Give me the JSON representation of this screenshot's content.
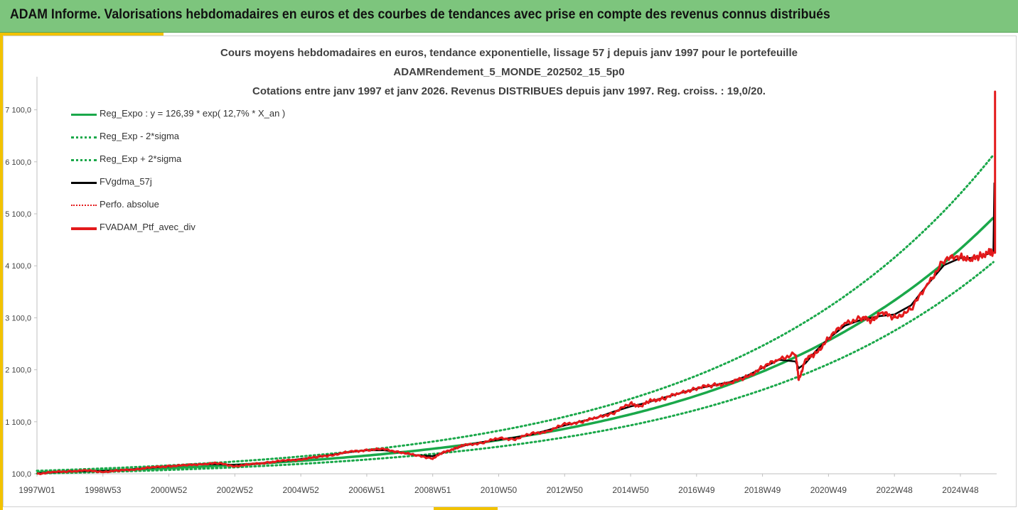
{
  "banner": {
    "title": "ADAM Informe. Valorisations hebdomadaires en euros et des courbes de tendances avec prise en compte des revenus connus distribués"
  },
  "chart_data": {
    "type": "line",
    "title": [
      "Cours moyens hebdomadaires  en euros, tendance exponentielle, lissage 57 j depuis janv 1997 pour le portefeuille",
      "ADAMRendement_5_MONDE_202502_15_5p0",
      "Cotations entre janv 1997 et janv 2026. Revenus DISTRIBUES depuis janv 1997. Reg. croiss. : 19,0/20."
    ],
    "xlabel": "",
    "ylabel": "",
    "xlim": [
      1997.0,
      2026.1
    ],
    "ylim": [
      100,
      7600
    ],
    "y_ticks": [
      100,
      1100,
      2100,
      3100,
      4100,
      5100,
      6100,
      7100
    ],
    "y_tick_labels": [
      "100,0",
      "1 100,0",
      "2 100,0",
      "3 100,0",
      "4 100,0",
      "5 100,0",
      "6 100,0",
      "7 100,0"
    ],
    "x_ticks": [
      1997.0,
      1999.0,
      2001.0,
      2003.0,
      2005.0,
      2007.0,
      2009.0,
      2011.0,
      2013.0,
      2015.0,
      2017.0,
      2019.0,
      2021.0,
      2023.0,
      2025.0
    ],
    "x_tick_labels": [
      "1997W01",
      "1998W53",
      "2000W52",
      "2002W52",
      "2004W52",
      "2006W51",
      "2008W51",
      "2010W50",
      "2012W50",
      "2014W50",
      "2016W49",
      "2018W49",
      "2020W49",
      "2022W48",
      "2024W48"
    ],
    "grid": false,
    "legend_position": "top-left",
    "series": [
      {
        "name": "Reg_Expo : y = 126,39 * exp( 12,7% *  X_an )",
        "color": "#1aa84a",
        "style": "solid",
        "a": 126.39,
        "rate": 0.127
      },
      {
        "name": "Reg_Exp - 2*sigma",
        "color": "#1aa84a",
        "style": "dotted",
        "factor": 0.83
      },
      {
        "name": "Reg_Exp + 2*sigma",
        "color": "#1aa84a",
        "style": "dotted",
        "factor": 1.24
      },
      {
        "name": "FVgdma_57j",
        "color": "#000000",
        "style": "solid"
      },
      {
        "name": "Perfo. absolue",
        "color": "#e31a1c",
        "style": "dotted"
      },
      {
        "name": "FVADAM_Ptf_avec_div",
        "color": "#e31a1c",
        "style": "solid"
      }
    ],
    "price_points": {
      "x": [
        1997.0,
        1997.5,
        1998.0,
        1998.5,
        1999.0,
        1999.5,
        2000.0,
        2000.5,
        2001.0,
        2001.5,
        2002.0,
        2002.5,
        2003.0,
        2003.5,
        2004.0,
        2004.5,
        2005.0,
        2005.5,
        2006.0,
        2006.5,
        2007.0,
        2007.5,
        2008.0,
        2008.5,
        2009.0,
        2009.3,
        2009.7,
        2010.0,
        2010.5,
        2011.0,
        2011.5,
        2012.0,
        2012.5,
        2013.0,
        2013.5,
        2014.0,
        2014.5,
        2015.0,
        2015.3,
        2015.6,
        2016.0,
        2016.5,
        2017.0,
        2017.5,
        2018.0,
        2018.5,
        2019.0,
        2019.5,
        2020.0,
        2020.1,
        2020.3,
        2020.6,
        2021.0,
        2021.5,
        2022.0,
        2022.3,
        2022.6,
        2023.0,
        2023.5,
        2024.0,
        2024.5,
        2025.0,
        2025.3,
        2025.6,
        2025.9,
        2026.0
      ],
      "y": [
        100,
        130,
        150,
        160,
        140,
        160,
        190,
        220,
        250,
        260,
        290,
        300,
        250,
        280,
        320,
        350,
        380,
        420,
        470,
        520,
        560,
        570,
        520,
        450,
        400,
        500,
        600,
        650,
        700,
        780,
        770,
        870,
        920,
        1050,
        1100,
        1180,
        1280,
        1450,
        1400,
        1500,
        1550,
        1650,
        1750,
        1800,
        1850,
        1950,
        2150,
        2300,
        2420,
        1900,
        2300,
        2400,
        2700,
        3000,
        3100,
        3050,
        3200,
        3100,
        3250,
        3750,
        4200,
        4300,
        4200,
        4300,
        4350,
        4350
      ],
      "spike_x": 2026.05,
      "spike_y": 7450,
      "smooth_end_y": 5700
    }
  }
}
